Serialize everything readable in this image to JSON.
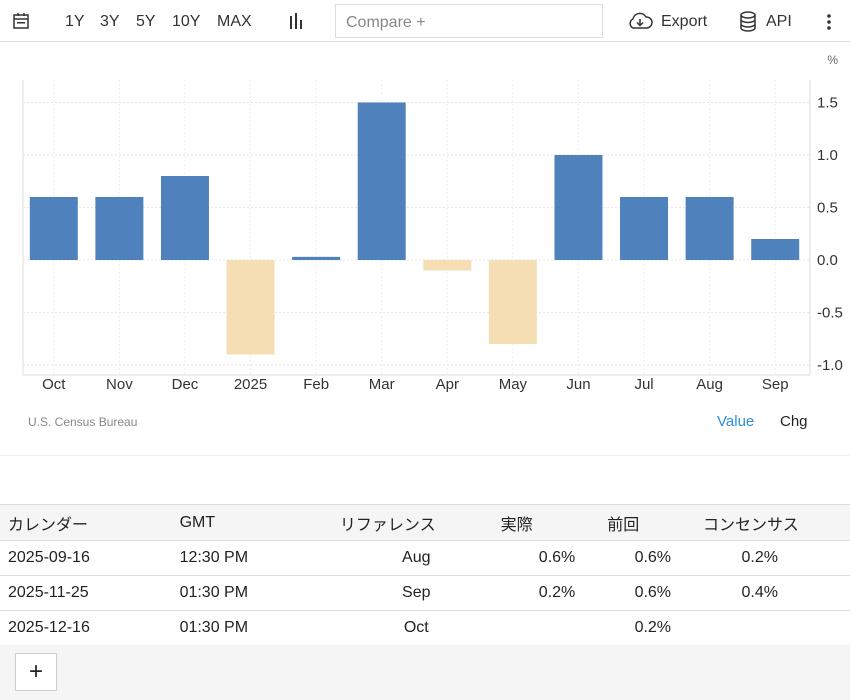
{
  "toolbar": {
    "ranges": [
      "1Y",
      "3Y",
      "5Y",
      "10Y",
      "MAX"
    ],
    "compare_placeholder": "Compare +",
    "export": "Export",
    "api": "API"
  },
  "chart_data": {
    "type": "bar",
    "unit": "%",
    "categories": [
      "Oct",
      "Nov",
      "Dec",
      "2025",
      "Feb",
      "Mar",
      "Apr",
      "May",
      "Jun",
      "Jul",
      "Aug",
      "Sep"
    ],
    "values": [
      0.6,
      0.6,
      0.8,
      -0.9,
      0.03,
      1.5,
      -0.1,
      -0.8,
      1.0,
      0.6,
      0.6,
      0.2
    ],
    "yticks": [
      "1.5",
      "1.0",
      "0.5",
      "0.0",
      "-0.5",
      "-1.0"
    ],
    "ylim": [
      -1.1,
      1.7
    ],
    "positive_color": "#4f81bd",
    "negative_color": "#f5deb3",
    "grid": true
  },
  "source": "U.S. Census Bureau",
  "toggle": {
    "value": "Value",
    "chg": "Chg"
  },
  "table": {
    "headers": [
      "カレンダー",
      "GMT",
      "リファレンス",
      "実際",
      "前回",
      "コンセンサス"
    ],
    "rows": [
      [
        "2025-09-16",
        "12:30 PM",
        "Aug",
        "0.6%",
        "0.6%",
        "0.2%"
      ],
      [
        "2025-11-25",
        "01:30 PM",
        "Sep",
        "0.2%",
        "0.6%",
        "0.4%"
      ],
      [
        "2025-12-16",
        "01:30 PM",
        "Oct",
        "",
        "0.2%",
        ""
      ]
    ]
  },
  "add_label": "+"
}
